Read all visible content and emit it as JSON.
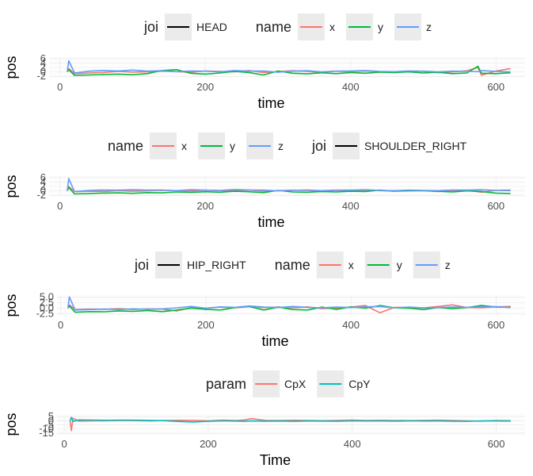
{
  "chart_data": [
    {
      "type": "line",
      "panel": "head",
      "x": [
        10,
        12,
        20,
        40,
        60,
        80,
        100,
        120,
        140,
        160,
        180,
        200,
        220,
        240,
        260,
        280,
        300,
        320,
        340,
        360,
        380,
        400,
        420,
        440,
        460,
        480,
        500,
        520,
        540,
        560,
        575,
        580,
        600,
        620
      ],
      "series": [
        {
          "name": "x",
          "color": "#F8766D",
          "values": [
            0,
            1.5,
            -0.8,
            -0.5,
            -0.3,
            0.2,
            -0.1,
            0.0,
            0.3,
            0.1,
            -0.2,
            0.4,
            0.2,
            0.0,
            0.6,
            -0.3,
            0.1,
            0.5,
            0.2,
            -0.2,
            0.3,
            0.1,
            0.4,
            0.0,
            -0.1,
            0.3,
            0.2,
            -0.4,
            0.0,
            0.5,
            2.0,
            -1.5,
            0.4,
            1.5
          ]
        },
        {
          "name": "y",
          "color": "#00BA38",
          "values": [
            0,
            1.0,
            -1.6,
            -1.4,
            -1.2,
            -1.0,
            -1.3,
            -0.8,
            0.6,
            1.0,
            -0.6,
            -1.0,
            -0.5,
            0.2,
            -0.3,
            -1.4,
            0.4,
            -0.6,
            -0.9,
            -0.4,
            -0.8,
            -0.3,
            -0.6,
            -0.1,
            -0.3,
            0.0,
            -0.5,
            -0.2,
            -0.8,
            -0.5,
            2.5,
            -0.6,
            -0.8,
            -0.4
          ]
        },
        {
          "name": "z",
          "color": "#619CFF",
          "values": [
            0,
            5.0,
            -0.5,
            0.3,
            0.6,
            0.4,
            0.8,
            0.3,
            0.5,
            0.1,
            0.4,
            0.3,
            0.0,
            0.6,
            0.3,
            0.4,
            -0.2,
            0.3,
            0.5,
            0.0,
            0.3,
            0.4,
            0.6,
            0.2,
            0.1,
            0.4,
            0.3,
            0.0,
            0.3,
            0.2,
            0.1,
            0.6,
            0.2,
            0.0
          ]
        }
      ],
      "legends": [
        {
          "title": "joi",
          "entries": [
            {
              "label": "HEAD",
              "color": "#000000"
            }
          ]
        },
        {
          "title": "name",
          "entries": [
            {
              "label": "x",
              "color": "#F8766D"
            },
            {
              "label": "y",
              "color": "#00BA38"
            },
            {
              "label": "z",
              "color": "#619CFF"
            }
          ]
        }
      ],
      "xlabel": "time",
      "ylabel": "pos",
      "xticks": [
        "0",
        "200",
        "400",
        "600"
      ],
      "yticks": [
        "-2",
        "0",
        "2",
        "4",
        "6"
      ],
      "xlim": [
        -15,
        640
      ],
      "ylim": [
        -2.3,
        6.3
      ],
      "grid": true,
      "legend_position": "top"
    },
    {
      "type": "line",
      "panel": "shoulder_right",
      "x": [
        10,
        12,
        20,
        40,
        60,
        80,
        100,
        120,
        140,
        160,
        180,
        200,
        220,
        240,
        260,
        280,
        300,
        320,
        340,
        360,
        380,
        400,
        420,
        440,
        460,
        480,
        500,
        520,
        540,
        560,
        580,
        600,
        620
      ],
      "series": [
        {
          "name": "x",
          "color": "#F8766D",
          "values": [
            0,
            2.0,
            -0.4,
            -0.2,
            -0.3,
            0.1,
            -0.2,
            0.0,
            0.2,
            0.1,
            -0.1,
            0.3,
            0.1,
            0.0,
            0.4,
            -0.2,
            0.1,
            0.3,
            0.2,
            -0.1,
            0.2,
            0.0,
            0.3,
            0.1,
            -0.1,
            0.2,
            0.1,
            -0.3,
            0.0,
            0.3,
            -0.6,
            0.2,
            0.4
          ]
        },
        {
          "name": "y",
          "color": "#00BA38",
          "values": [
            0,
            1.5,
            -1.4,
            -1.2,
            -1.0,
            -0.9,
            -1.1,
            -0.8,
            -0.9,
            -0.5,
            -0.7,
            -0.4,
            -0.6,
            -0.2,
            -0.4,
            -0.8,
            0.2,
            -0.5,
            -0.6,
            -0.3,
            -0.5,
            -0.2,
            -0.3,
            0.3,
            -0.1,
            0.0,
            0.1,
            -0.2,
            -0.5,
            0.0,
            -0.3,
            -1.0,
            -1.2
          ]
        },
        {
          "name": "z",
          "color": "#619CFF",
          "values": [
            0,
            5.5,
            -0.3,
            0.2,
            0.4,
            0.3,
            0.5,
            0.3,
            0.4,
            0.1,
            0.5,
            0.3,
            0.2,
            0.6,
            0.4,
            0.3,
            0.0,
            0.2,
            0.4,
            0.1,
            0.3,
            0.3,
            0.5,
            0.2,
            0.1,
            0.3,
            0.2,
            0.1,
            0.4,
            0.3,
            0.5,
            0.2,
            0.1
          ]
        }
      ],
      "legends": [
        {
          "title": "name",
          "entries": [
            {
              "label": "x",
              "color": "#F8766D"
            },
            {
              "label": "y",
              "color": "#00BA38"
            },
            {
              "label": "z",
              "color": "#619CFF"
            }
          ]
        },
        {
          "title": "joi",
          "entries": [
            {
              "label": "SHOULDER_RIGHT",
              "color": "#000000"
            }
          ]
        }
      ],
      "xlabel": "time",
      "ylabel": "pos",
      "xticks": [
        "0",
        "200",
        "400",
        "600"
      ],
      "yticks": [
        "-2",
        "0",
        "2",
        "4",
        "6"
      ],
      "xlim": [
        -15,
        640
      ],
      "ylim": [
        -2.3,
        6.3
      ],
      "grid": true,
      "legend_position": "top"
    },
    {
      "type": "line",
      "panel": "hip_right",
      "x": [
        10,
        12,
        20,
        40,
        60,
        80,
        100,
        120,
        140,
        160,
        180,
        200,
        220,
        240,
        260,
        280,
        300,
        320,
        340,
        360,
        380,
        400,
        420,
        440,
        460,
        480,
        500,
        520,
        540,
        560,
        580,
        600,
        620
      ],
      "series": [
        {
          "name": "x",
          "color": "#F8766D",
          "values": [
            0,
            1.5,
            -0.6,
            -0.4,
            -0.5,
            -0.2,
            -0.6,
            -0.3,
            -0.4,
            -1.2,
            0.3,
            0.0,
            0.5,
            0.2,
            0.8,
            0.3,
            0.5,
            0.2,
            0.6,
            -0.2,
            0.1,
            0.5,
            1.2,
            -2.0,
            0.4,
            0.3,
            0.2,
            0.8,
            1.5,
            0.3,
            0.2,
            0.6,
            0.8
          ]
        },
        {
          "name": "y",
          "color": "#00BA38",
          "values": [
            0,
            1.0,
            -1.8,
            -1.5,
            -1.6,
            -1.2,
            -1.4,
            -1.0,
            -1.5,
            -0.8,
            0.0,
            -0.5,
            -0.8,
            0.3,
            0.8,
            -0.8,
            0.5,
            -0.6,
            -0.8,
            0.5,
            -0.5,
            0.6,
            0.0,
            1.2,
            0.2,
            0.0,
            -0.6,
            0.3,
            -0.2,
            0.3,
            1.2,
            0.5,
            0.4
          ]
        },
        {
          "name": "z",
          "color": "#619CFF",
          "values": [
            0,
            5.0,
            -0.8,
            -0.6,
            -0.4,
            -0.6,
            -0.3,
            -0.5,
            -0.3,
            0.2,
            0.8,
            0.0,
            0.6,
            0.4,
            1.0,
            0.5,
            0.3,
            0.8,
            0.4,
            0.2,
            0.5,
            0.3,
            0.6,
            0.8,
            0.2,
            0.5,
            0.2,
            0.3,
            0.5,
            0.4,
            0.6,
            0.7,
            0.3
          ]
        }
      ],
      "legends": [
        {
          "title": "joi",
          "entries": [
            {
              "label": "HIP_RIGHT",
              "color": "#000000"
            }
          ]
        },
        {
          "title": "name",
          "entries": [
            {
              "label": "x",
              "color": "#F8766D"
            },
            {
              "label": "y",
              "color": "#00BA38"
            },
            {
              "label": "z",
              "color": "#619CFF"
            }
          ]
        }
      ],
      "xlabel": "time",
      "ylabel": "pos",
      "xticks": [
        "0",
        "200",
        "400",
        "600"
      ],
      "yticks": [
        "-2.5",
        "0.0",
        "2.5",
        "5.0"
      ],
      "xlim": [
        -5,
        640
      ],
      "ylim": [
        -3.0,
        5.5
      ],
      "grid": true,
      "legend_position": "top"
    },
    {
      "type": "line",
      "panel": "cop",
      "x": [
        8,
        10,
        12,
        20,
        40,
        60,
        80,
        100,
        120,
        140,
        160,
        180,
        200,
        220,
        240,
        250,
        260,
        280,
        300,
        320,
        340,
        360,
        380,
        400,
        420,
        440,
        460,
        480,
        500,
        520,
        540,
        560,
        580,
        600,
        620
      ],
      "series": [
        {
          "name": "CpX",
          "color": "#F8766D",
          "values": [
            0,
            -12,
            3,
            -0.5,
            -0.2,
            0.0,
            0.2,
            0.1,
            -0.3,
            0.2,
            0.5,
            0.4,
            -0.2,
            0.8,
            0.3,
            1.0,
            2.5,
            0.4,
            0.2,
            0.6,
            0.3,
            0.0,
            0.4,
            0.7,
            0.2,
            0.5,
            0.3,
            0.1,
            0.4,
            0.6,
            0.2,
            -0.3,
            -0.5,
            0.3,
            0.0
          ]
        },
        {
          "name": "CpY",
          "color": "#00BFC4",
          "values": [
            0,
            4,
            -1,
            1.0,
            0.8,
            0.5,
            0.8,
            0.6,
            0.4,
            0.0,
            -1.0,
            -1.5,
            -0.8,
            -0.2,
            -0.5,
            -0.8,
            -0.3,
            -0.6,
            -0.4,
            -0.8,
            -0.3,
            -0.5,
            -0.6,
            -0.2,
            -0.4,
            -0.3,
            -0.5,
            -0.2,
            -0.4,
            -0.3,
            -0.6,
            -0.8,
            -0.2,
            -0.3,
            -0.4
          ]
        }
      ],
      "legends": [
        {
          "title": "param",
          "entries": [
            {
              "label": "CpX",
              "color": "#F8766D"
            },
            {
              "label": "CpY",
              "color": "#00BFC4"
            }
          ]
        }
      ],
      "xlabel": "Time",
      "ylabel": "pos",
      "xticks": [
        "0",
        "200",
        "400",
        "600"
      ],
      "yticks": [
        "-15",
        "-10",
        "-5",
        "0",
        "5"
      ],
      "xlim": [
        -10,
        640
      ],
      "ylim": [
        -16,
        7
      ],
      "grid": true,
      "legend_position": "top"
    }
  ]
}
